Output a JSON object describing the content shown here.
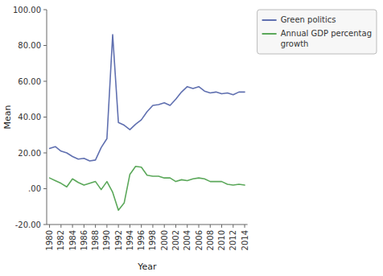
{
  "chart_data": {
    "type": "line",
    "x": [
      1980,
      1981,
      1982,
      1983,
      1984,
      1985,
      1986,
      1987,
      1988,
      1989,
      1990,
      1991,
      1992,
      1993,
      1994,
      1995,
      1996,
      1997,
      1998,
      1999,
      2000,
      2001,
      2002,
      2003,
      2004,
      2005,
      2006,
      2007,
      2008,
      2009,
      2010,
      2011,
      2012,
      2013,
      2014
    ],
    "series": [
      {
        "name": "Green politics",
        "color": "#6070B0",
        "values": [
          22.5,
          23.5,
          21.0,
          20.0,
          18.0,
          16.5,
          17.0,
          15.5,
          16.0,
          23.0,
          28.0,
          86.0,
          37.0,
          35.5,
          33.0,
          36.0,
          38.5,
          43.0,
          46.5,
          47.0,
          48.0,
          46.5,
          50.0,
          54.0,
          57.0,
          56.0,
          57.0,
          54.5,
          53.5,
          54.0,
          53.0,
          53.5,
          52.5,
          54.0,
          54.0
        ]
      },
      {
        "name": "Annual GDP percentag\ngrowth",
        "color": "#5BA85A",
        "values": [
          6.0,
          4.5,
          3.0,
          1.0,
          5.5,
          3.5,
          2.0,
          3.0,
          4.0,
          -0.5,
          4.0,
          -2.0,
          -12.0,
          -8.0,
          8.0,
          12.5,
          12.0,
          7.5,
          7.0,
          7.0,
          6.0,
          6.0,
          4.0,
          5.0,
          4.5,
          5.5,
          6.0,
          5.5,
          4.0,
          4.0,
          4.0,
          2.5,
          2.0,
          2.5,
          2.0
        ]
      }
    ],
    "xlabel": "Year",
    "ylabel": "Mean",
    "xlim": [
      1979.5,
      2014.5
    ],
    "xticks": [
      1980,
      1982,
      1984,
      1986,
      1988,
      1990,
      1992,
      1994,
      1996,
      1998,
      2000,
      2002,
      2004,
      2006,
      2008,
      2010,
      2012,
      2014
    ],
    "ylim": [
      -20,
      100
    ],
    "yticks": [
      {
        "value": -20,
        "label": "-20.00"
      },
      {
        "value": 0,
        "label": ".00"
      },
      {
        "value": 20,
        "label": "20.00"
      },
      {
        "value": 40,
        "label": "40.00"
      },
      {
        "value": 60,
        "label": "60.00"
      },
      {
        "value": 80,
        "label": "80.00"
      },
      {
        "value": 100,
        "label": "100.00"
      }
    ],
    "grid": false,
    "legend": "right"
  }
}
